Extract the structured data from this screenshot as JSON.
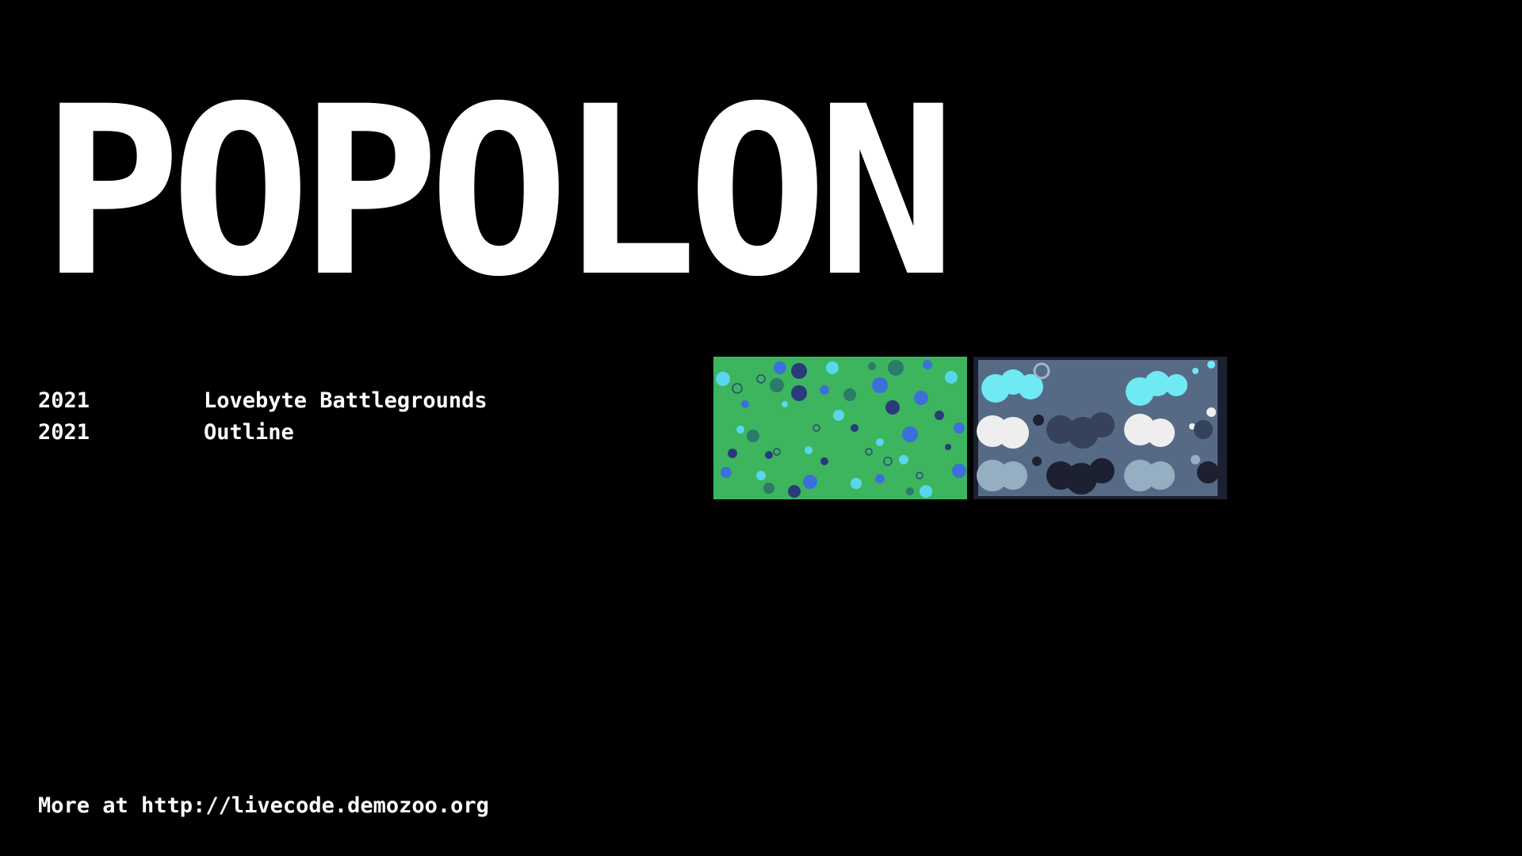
{
  "title": "POPOLON",
  "entries": [
    {
      "year": "2021",
      "event": "Lovebyte Battlegrounds"
    },
    {
      "year": "2021",
      "event": "Outline"
    }
  ],
  "thumbnails": [
    {
      "name": "green-bubbles-thumbnail",
      "background": "#3cb55e"
    },
    {
      "name": "grey-clouds-thumbnail",
      "background": "#566a85"
    }
  ],
  "footer": {
    "text": "More at http://livecode.demozoo.org"
  },
  "colors": {
    "background": "#000000",
    "text": "#ffffff"
  }
}
